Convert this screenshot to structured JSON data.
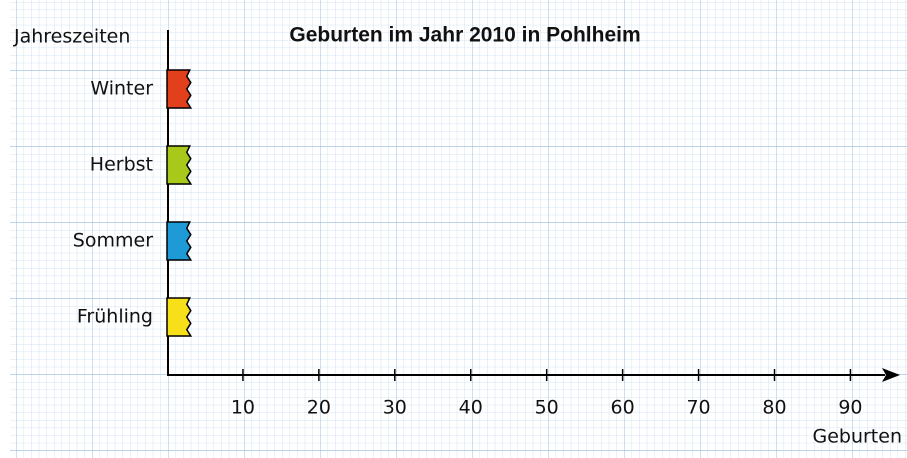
{
  "chart_data": {
    "type": "barh",
    "title": "Geburten im Jahr 2010 in Pohlheim",
    "y_label": "Jahreszeiten",
    "x_label": "Geburten",
    "categories": [
      "Frühling",
      "Sommer",
      "Herbst",
      "Winter"
    ],
    "values": [
      3,
      3,
      3,
      3
    ],
    "colors": [
      "#f7e01a",
      "#1e9ad6",
      "#a8c81a",
      "#e2401c"
    ],
    "xlim": [
      0,
      96
    ],
    "xticks": [
      10,
      20,
      30,
      40,
      50,
      60,
      70,
      80,
      90
    ]
  }
}
